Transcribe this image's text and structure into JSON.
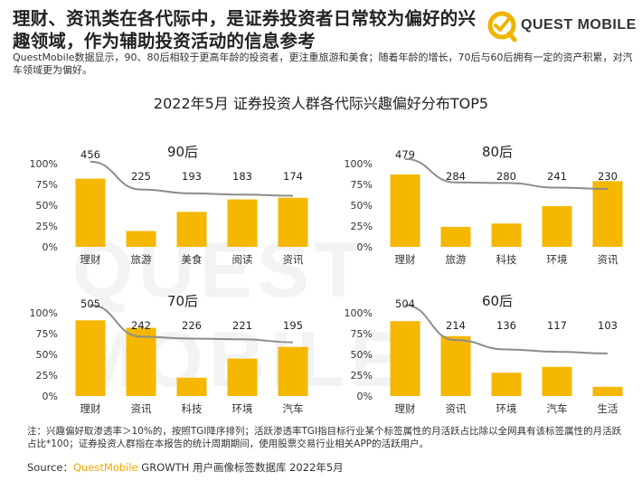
{
  "header": {
    "headline": "理财、资讯类在各代际中，是证券投资者日常较为偏好的兴趣领域，作为辅助投资活动的信息参考",
    "logo_text": "QUEST MOBILE",
    "logo_color": "#f0b400",
    "description": "QuestMobile数据显示，90、80后相较于更高年龄的投资者，更注重旅游和美食；随着年龄的增长，70后与60后拥有一定的资产积累，对汽车领域更为偏好。"
  },
  "watermark": "QUEST MOBILE",
  "chart_title": "2022年5月 证券投资人群各代际兴趣偏好分布TOP5",
  "chart_data": [
    {
      "type": "bar",
      "title": "90后",
      "categories": [
        "理财",
        "旅游",
        "美食",
        "阅读",
        "资讯"
      ],
      "bar_values": [
        0.82,
        0.19,
        0.42,
        0.57,
        0.59
      ],
      "tgi": [
        456,
        225,
        193,
        183,
        174
      ],
      "y_ticks": [
        "0%",
        "25%",
        "50%",
        "75%",
        "100%"
      ],
      "ylim": [
        0,
        1
      ],
      "bar_color": "#f5b700",
      "line_color": "#8c8c8c"
    },
    {
      "type": "bar",
      "title": "80后",
      "categories": [
        "理财",
        "旅游",
        "科技",
        "环境",
        "资讯"
      ],
      "bar_values": [
        0.87,
        0.24,
        0.28,
        0.49,
        0.79
      ],
      "tgi": [
        479,
        284,
        280,
        241,
        230
      ],
      "y_ticks": [
        "0%",
        "25%",
        "50%",
        "75%",
        "100%"
      ],
      "ylim": [
        0,
        1
      ],
      "bar_color": "#f5b700",
      "line_color": "#8c8c8c"
    },
    {
      "type": "bar",
      "title": "70后",
      "categories": [
        "理财",
        "资讯",
        "科技",
        "环境",
        "汽车"
      ],
      "bar_values": [
        0.91,
        0.82,
        0.22,
        0.45,
        0.59
      ],
      "tgi": [
        505,
        242,
        226,
        221,
        195
      ],
      "y_ticks": [
        "0%",
        "25%",
        "50%",
        "75%",
        "100%"
      ],
      "ylim": [
        0,
        1
      ],
      "bar_color": "#f5b700",
      "line_color": "#8c8c8c"
    },
    {
      "type": "bar",
      "title": "60后",
      "categories": [
        "理财",
        "资讯",
        "环境",
        "汽车",
        "生活"
      ],
      "bar_values": [
        0.9,
        0.72,
        0.28,
        0.35,
        0.11
      ],
      "tgi": [
        504,
        214,
        136,
        117,
        103
      ],
      "y_ticks": [
        "0%",
        "25%",
        "50%",
        "75%",
        "100%"
      ],
      "ylim": [
        0,
        1
      ],
      "bar_color": "#f5b700",
      "line_color": "#8c8c8c"
    }
  ],
  "footnote": "注：兴趣偏好取渗透率＞10%的，按照TGI降序排列；活跃渗透率TGI指目标行业某个标签属性的月活跃占比除以全网具有该标签属性的月活跃占比*100；证券投资人群指在本报告的统计周期期间，使用股票交易行业相关APP的活跃用户。",
  "source": {
    "prefix": "Source：",
    "brand": "QuestMobile",
    "rest": " GROWTH 用户画像标签数据库 2022年5月"
  }
}
